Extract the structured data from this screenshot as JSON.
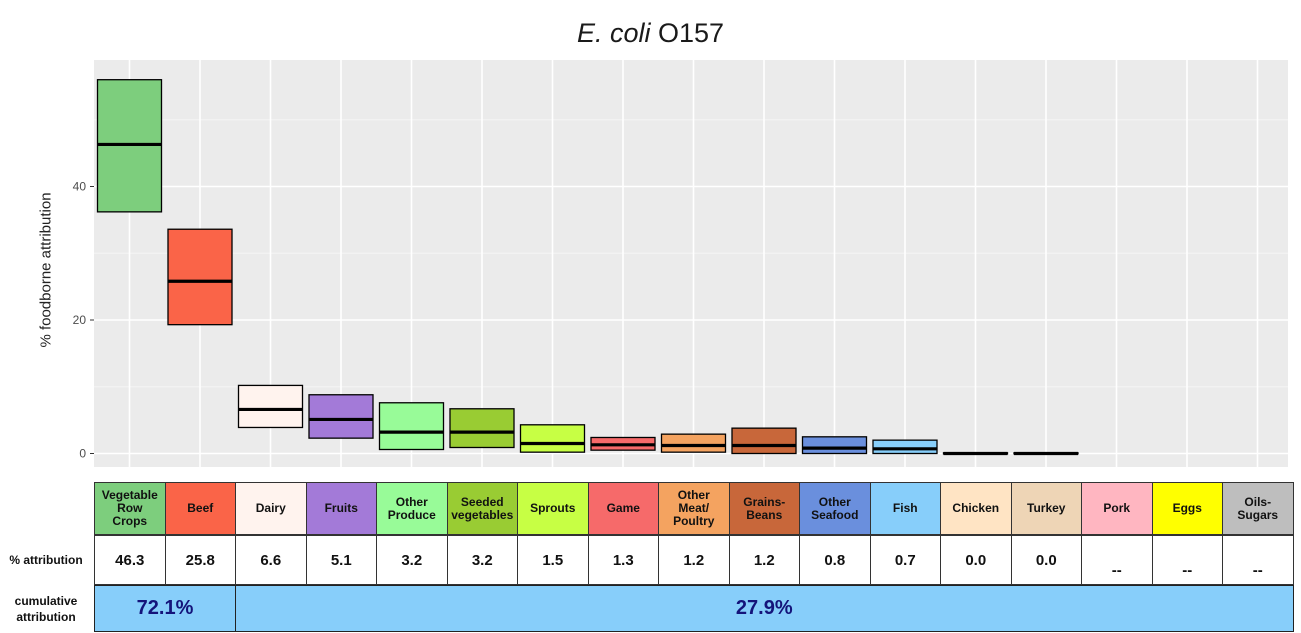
{
  "title": {
    "italic": "E. coli",
    "rest": "O157"
  },
  "chart_data": {
    "type": "boxplot",
    "title": "E. coli O157",
    "ylabel": "% foodborne attribution",
    "ylim": [
      -2,
      57
    ],
    "yticks": [
      0,
      20,
      40
    ],
    "grid": true,
    "categories": [
      "Vegetable Row Crops",
      "Beef",
      "Dairy",
      "Fruits",
      "Other Produce",
      "Seeded vegetables",
      "Sprouts",
      "Game",
      "Other Meat/ Poultry",
      "Grains-Beans",
      "Other Seafood",
      "Fish",
      "Chicken",
      "Turkey",
      "Pork",
      "Eggs",
      "Oils-Sugars"
    ],
    "boxes": [
      {
        "low": 36.2,
        "median": 46.3,
        "high": 56.0
      },
      {
        "low": 19.3,
        "median": 25.8,
        "high": 33.6
      },
      {
        "low": 3.9,
        "median": 6.6,
        "high": 10.2
      },
      {
        "low": 2.3,
        "median": 5.1,
        "high": 8.8
      },
      {
        "low": 0.6,
        "median": 3.2,
        "high": 7.6
      },
      {
        "low": 0.9,
        "median": 3.2,
        "high": 6.7
      },
      {
        "low": 0.2,
        "median": 1.5,
        "high": 4.3
      },
      {
        "low": 0.5,
        "median": 1.3,
        "high": 2.4
      },
      {
        "low": 0.2,
        "median": 1.2,
        "high": 2.9
      },
      {
        "low": 0.0,
        "median": 1.2,
        "high": 3.8
      },
      {
        "low": 0.0,
        "median": 0.8,
        "high": 2.5
      },
      {
        "low": 0.0,
        "median": 0.7,
        "high": 2.0
      },
      {
        "low": 0.0,
        "median": 0.0,
        "high": 0.1
      },
      {
        "low": 0.0,
        "median": 0.0,
        "high": 0.1
      },
      null,
      null,
      null
    ],
    "colors": [
      "#7dce7d",
      "#fa6448",
      "#fff3ee",
      "#a37ad8",
      "#98fb98",
      "#99cc33",
      "#c7ff44",
      "#f66a6a",
      "#f4a360",
      "#c8673a",
      "#6a8fdd",
      "#87cefa",
      "#ffe4c4",
      "#eed5b6",
      "#ffb6c1",
      "#ffff00",
      "#bebebe"
    ]
  },
  "table": {
    "header_labels": [
      [
        "Vegetable",
        "Row",
        "Crops"
      ],
      [
        "Beef"
      ],
      [
        "Dairy"
      ],
      [
        "Fruits"
      ],
      [
        "Other",
        "Produce"
      ],
      [
        "Seeded",
        "vegetables"
      ],
      [
        "Sprouts"
      ],
      [
        "Game"
      ],
      [
        "Other",
        "Meat/",
        "Poultry"
      ],
      [
        "Grains-",
        "Beans"
      ],
      [
        "Other",
        "Seafood"
      ],
      [
        "Fish"
      ],
      [
        "Chicken"
      ],
      [
        "Turkey"
      ],
      [
        "Pork"
      ],
      [
        "Eggs"
      ],
      [
        "Oils-",
        "Sugars"
      ]
    ],
    "attribution_label": "% attribution",
    "attribution_values": [
      "46.3",
      "25.8",
      "6.6",
      "5.1",
      "3.2",
      "3.2",
      "1.5",
      "1.3",
      "1.2",
      "1.2",
      "0.8",
      "0.7",
      "0.0",
      "0.0",
      "--",
      "--",
      "--"
    ],
    "cumulative_label": [
      "cumulative",
      "attribution"
    ],
    "cumulative_left": "72.1%",
    "cumulative_right": "27.9%"
  }
}
